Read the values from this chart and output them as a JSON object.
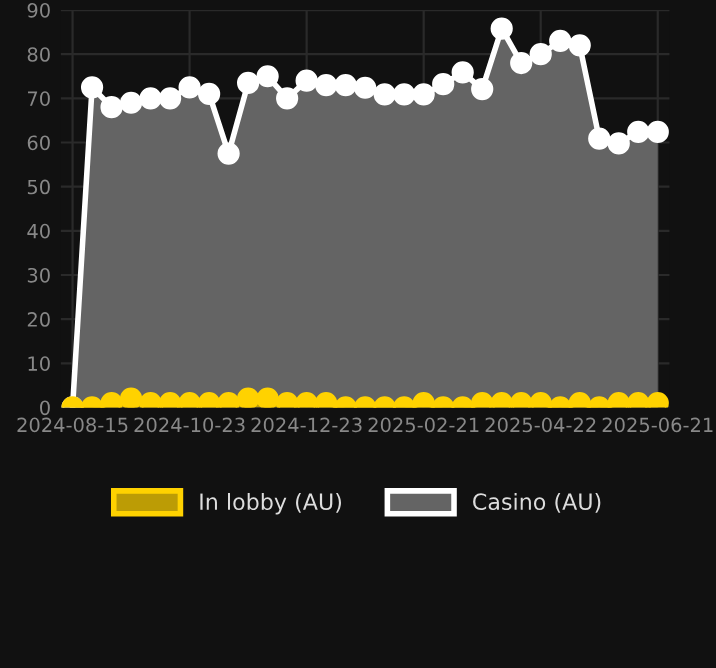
{
  "chart_data": {
    "type": "area",
    "categories": [
      "2024-08-15",
      null,
      null,
      null,
      null,
      null,
      "2024-10-23",
      null,
      null,
      null,
      null,
      null,
      "2024-12-23",
      null,
      null,
      null,
      null,
      null,
      "2025-02-21",
      null,
      null,
      null,
      null,
      null,
      "2025-04-22",
      null,
      null,
      null,
      null,
      null,
      "2025-06-21"
    ],
    "series": [
      {
        "name": "In lobby (AU)",
        "color": "#ffd200",
        "values": [
          0,
          0,
          1,
          2,
          1,
          1,
          1,
          1,
          1,
          2,
          2,
          1,
          1,
          1,
          0,
          0,
          0,
          0,
          1,
          0,
          0,
          1,
          1,
          1,
          1,
          0,
          1,
          0,
          1,
          1,
          1
        ]
      },
      {
        "name": "Casino (AU)",
        "color": "#ffffff",
        "values": [
          0,
          72.5,
          68,
          69,
          70,
          70,
          72.5,
          71,
          57.5,
          73.5,
          75,
          70,
          74,
          73,
          73,
          72.4,
          70.9,
          70.9,
          70.9,
          73.2,
          75.9,
          72.1,
          85.8,
          78,
          80,
          83,
          82,
          60.9,
          59.8,
          62.4,
          62.4
        ]
      }
    ],
    "ylim": [
      0,
      90
    ],
    "yticks": [
      0,
      10,
      20,
      30,
      40,
      50,
      60,
      70,
      80,
      90
    ],
    "grid": true,
    "legend": "bottom",
    "marker": "circle",
    "line_style": "solid"
  }
}
